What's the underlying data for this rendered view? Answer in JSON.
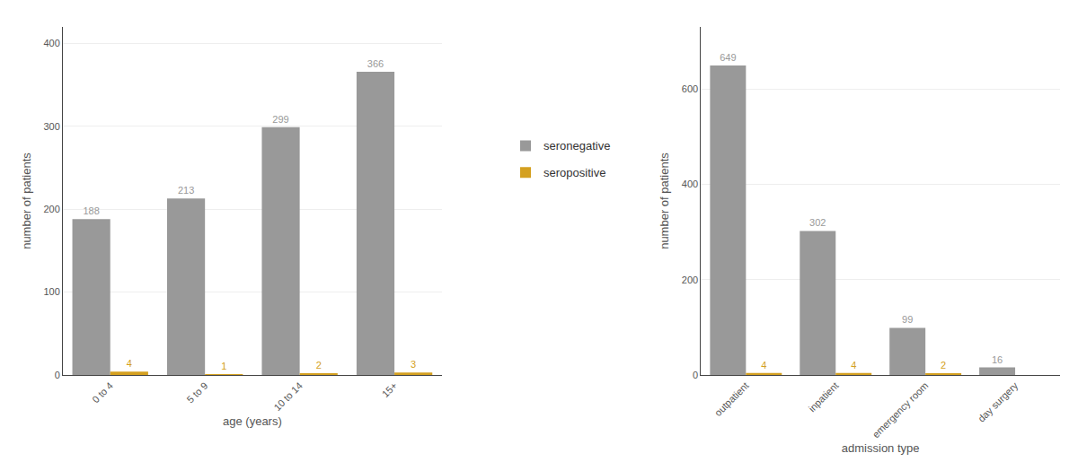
{
  "chart_data": [
    {
      "type": "bar",
      "categories": [
        "0 to 4",
        "5 to 9",
        "10 to 14",
        "15+"
      ],
      "series": [
        {
          "name": "seronegative",
          "color": "#999999",
          "values": [
            188,
            213,
            299,
            366
          ]
        },
        {
          "name": "seropositive",
          "color": "#D4A020",
          "values": [
            4,
            1,
            2,
            3
          ]
        }
      ],
      "xlabel": "age (years)",
      "ylabel": "number of patients",
      "ylim": [
        0,
        420
      ],
      "yticks": [
        0,
        100,
        200,
        300,
        400
      ],
      "data_labels": true,
      "legend": "center"
    },
    {
      "type": "bar",
      "categories": [
        "outpatient",
        "inpatient",
        "emergency room",
        "day surgery"
      ],
      "series": [
        {
          "name": "seronegative",
          "color": "#999999",
          "values": [
            649,
            302,
            99,
            16
          ]
        },
        {
          "name": "seropositive",
          "color": "#D4A020",
          "values": [
            4,
            4,
            2,
            0
          ],
          "value_labels": [
            "4",
            "4",
            "2",
            null
          ]
        }
      ],
      "xlabel": "admission type",
      "ylabel": "number of patients",
      "ylim": [
        0,
        730
      ],
      "yticks": [
        0,
        200,
        400,
        600
      ],
      "data_labels": true
    }
  ]
}
